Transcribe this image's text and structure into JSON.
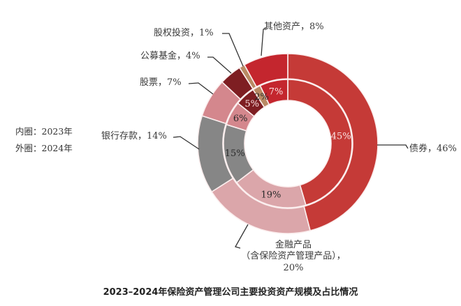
{
  "chart_data": {
    "type": "pie",
    "subtype": "double-donut",
    "title": "2023–2024年保险资产管理公司主要投资资产规模及占比情况",
    "legend": {
      "inner": "内圈：2023年",
      "outer": "外圈：2024年"
    },
    "categories": [
      "债券",
      "金融产品（含保险资产管理产品）",
      "银行存款",
      "股票",
      "公募基金",
      "股权投资",
      "其他资产"
    ],
    "series": [
      {
        "name": "2024年",
        "ring": "outer",
        "values": [
          46,
          20,
          14,
          7,
          4,
          1,
          8
        ]
      },
      {
        "name": "2023年",
        "ring": "inner",
        "values": [
          45,
          19,
          15,
          6,
          5,
          2,
          7
        ]
      }
    ],
    "colors": [
      "#c53a37",
      "#dba6aa",
      "#868686",
      "#d4878d",
      "#7e1e22",
      "#b98a64",
      "#c4262e"
    ],
    "start_angle": "12 o'clock, clockwise"
  },
  "labels": {
    "bonds": "债券，46%",
    "fin_line1": "金融产品",
    "fin_line2": "（含保险资产管理产品），",
    "fin_line3": "20%",
    "bank": "银行存款，14%",
    "stocks": "股票，7%",
    "funds": "公募基金，4%",
    "equity": "股权投资，1%",
    "other": "其他资产，8%"
  },
  "inner_labels": [
    "45%",
    "19%",
    "15%",
    "6%",
    "5%",
    "2%",
    "7%"
  ],
  "legend": {
    "inner": "内圈：2023年",
    "outer": "外圈：2024年"
  },
  "title": "2023–2024年保险资产管理公司主要投资资产规模及占比情况"
}
